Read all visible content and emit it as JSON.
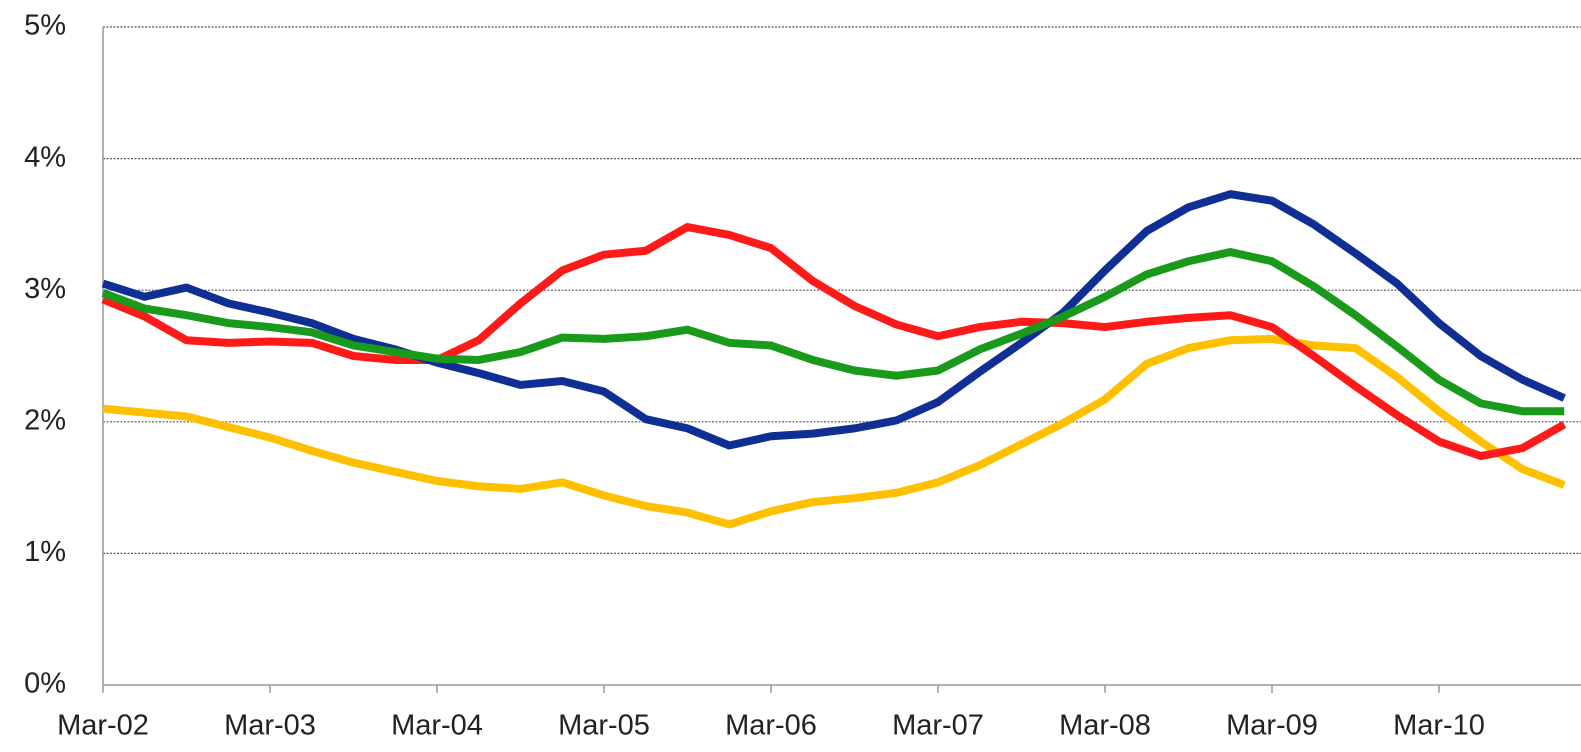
{
  "chart_data": {
    "type": "line",
    "categories": [
      "Mar-02",
      null,
      null,
      null,
      "Mar-03",
      null,
      null,
      null,
      "Mar-04",
      null,
      null,
      null,
      "Mar-05",
      null,
      null,
      null,
      "Mar-06",
      null,
      null,
      null,
      "Mar-07",
      null,
      null,
      null,
      "Mar-08",
      null,
      null,
      null,
      "Mar-09",
      null,
      null,
      null,
      "Mar-10",
      null,
      null,
      null
    ],
    "series": [
      {
        "color": "#ffc000",
        "values": [
          2.1,
          2.07,
          2.04,
          1.96,
          1.88,
          1.78,
          1.69,
          1.62,
          1.55,
          1.51,
          1.49,
          1.54,
          1.44,
          1.36,
          1.31,
          1.22,
          1.32,
          1.39,
          1.42,
          1.46,
          1.54,
          1.67,
          1.83,
          1.99,
          2.17,
          2.44,
          2.56,
          2.62,
          2.63,
          2.58,
          2.56,
          2.34,
          2.08,
          1.85,
          1.64,
          1.52
        ]
      },
      {
        "color": "#ff1a1a",
        "values": [
          2.93,
          2.8,
          2.62,
          2.6,
          2.61,
          2.6,
          2.5,
          2.47,
          2.47,
          2.62,
          2.9,
          3.15,
          3.27,
          3.3,
          3.48,
          3.42,
          3.32,
          3.07,
          2.88,
          2.74,
          2.65,
          2.72,
          2.76,
          2.75,
          2.72,
          2.76,
          2.79,
          2.81,
          2.72,
          2.5,
          2.27,
          2.05,
          1.85,
          1.74,
          1.8,
          1.98
        ]
      },
      {
        "color": "#0f2f94",
        "values": [
          3.05,
          2.95,
          3.02,
          2.9,
          2.83,
          2.75,
          2.63,
          2.55,
          2.45,
          2.37,
          2.28,
          2.31,
          2.23,
          2.02,
          1.95,
          1.82,
          1.89,
          1.91,
          1.95,
          2.01,
          2.15,
          2.38,
          2.6,
          2.83,
          3.15,
          3.45,
          3.63,
          3.73,
          3.68,
          3.5,
          3.28,
          3.05,
          2.75,
          2.5,
          2.32,
          2.18
        ]
      },
      {
        "color": "#1a9a1a",
        "values": [
          2.98,
          2.86,
          2.81,
          2.75,
          2.72,
          2.68,
          2.58,
          2.53,
          2.48,
          2.47,
          2.53,
          2.64,
          2.63,
          2.65,
          2.7,
          2.6,
          2.58,
          2.47,
          2.39,
          2.35,
          2.39,
          2.55,
          2.67,
          2.8,
          2.95,
          3.12,
          3.22,
          3.29,
          3.22,
          3.03,
          2.81,
          2.57,
          2.32,
          2.14,
          2.08,
          2.08
        ]
      }
    ],
    "ylim": [
      0,
      5
    ],
    "yticks": [
      {
        "value": 0,
        "label": "0%"
      },
      {
        "value": 1,
        "label": "1%"
      },
      {
        "value": 2,
        "label": "2%"
      },
      {
        "value": 3,
        "label": "3%"
      },
      {
        "value": 4,
        "label": "4%"
      },
      {
        "value": 5,
        "label": "5%"
      }
    ],
    "grid": true
  }
}
